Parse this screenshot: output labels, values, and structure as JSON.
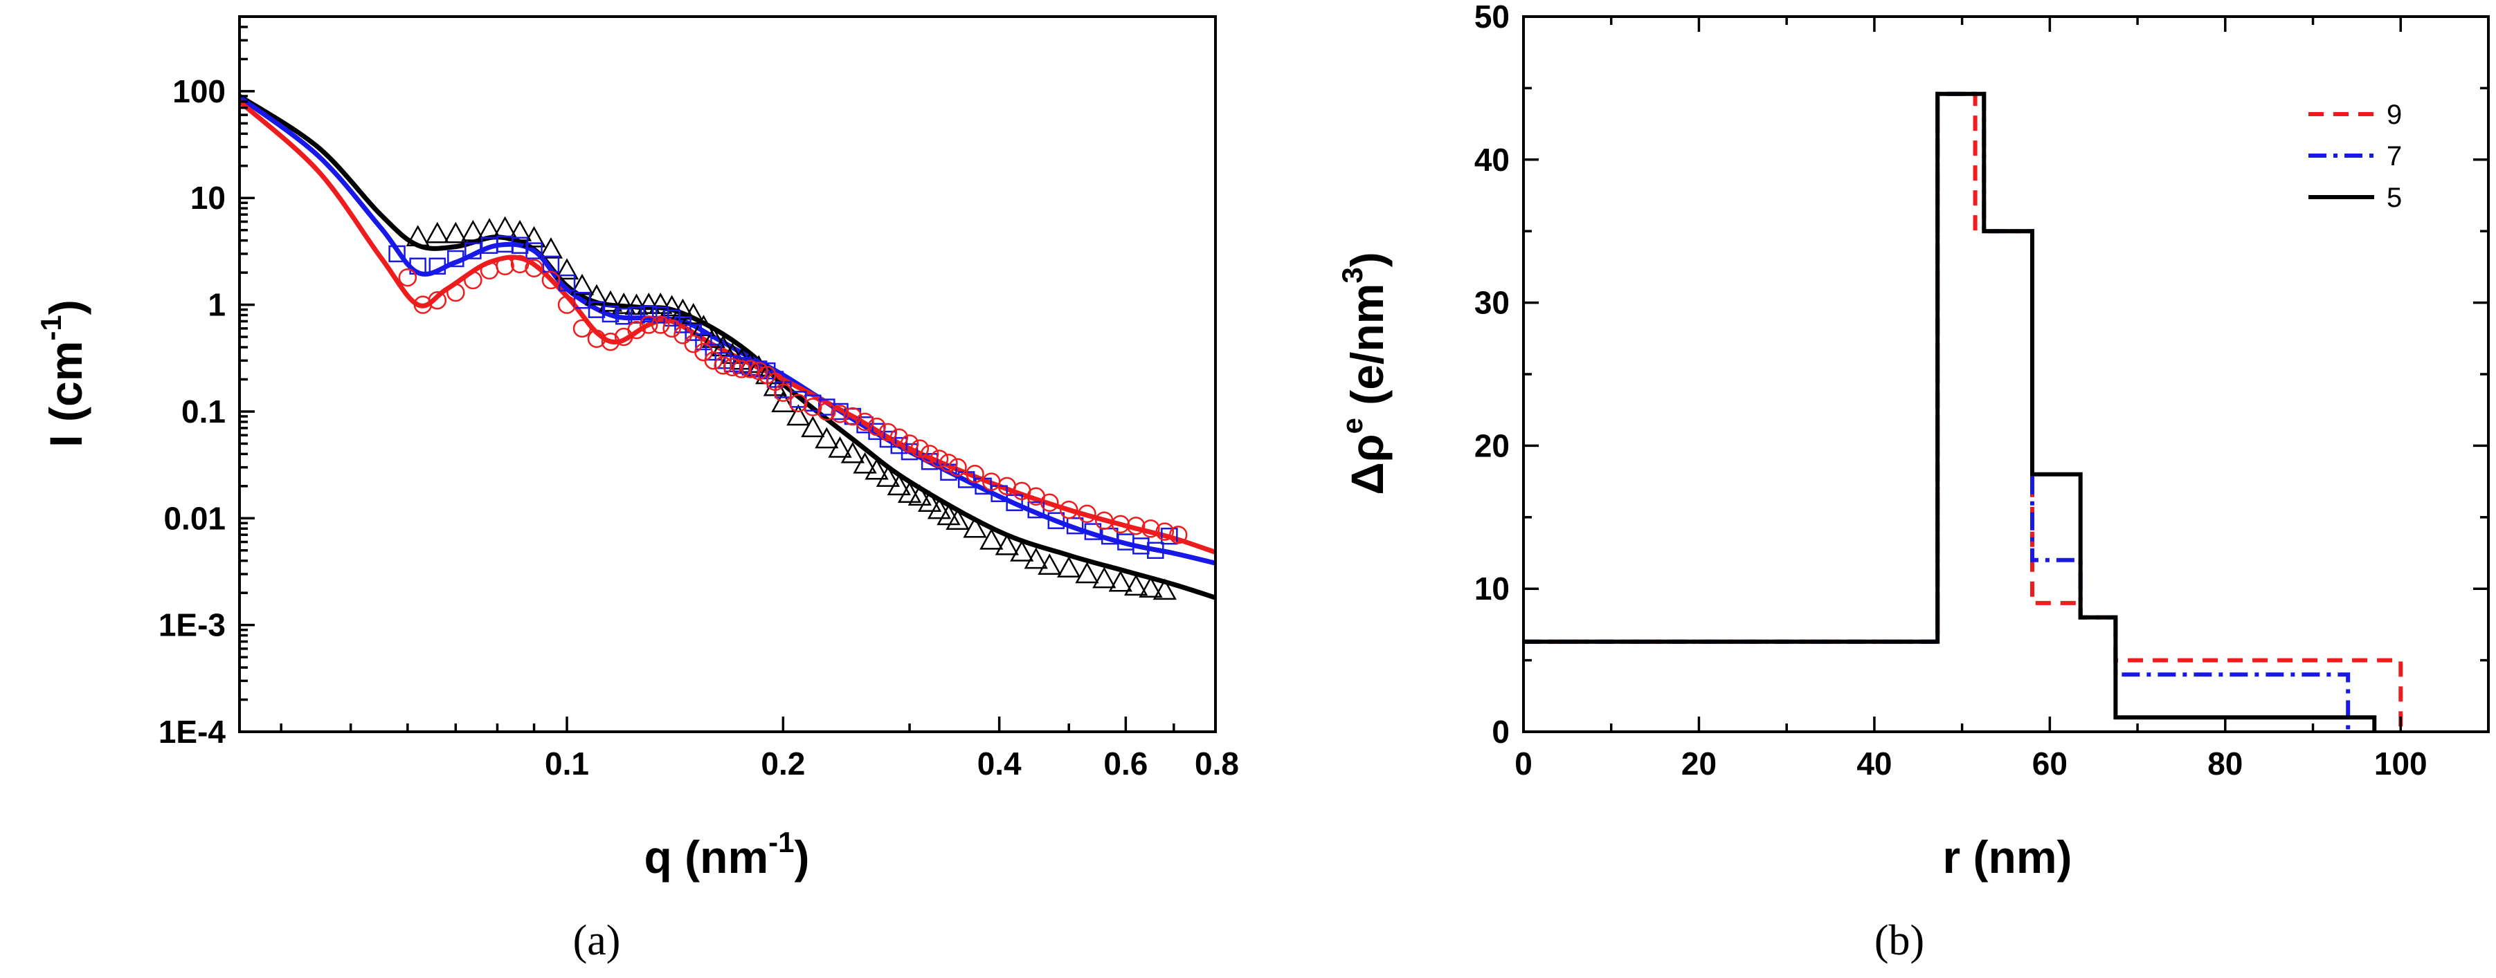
{
  "colors": {
    "red": "#ee1c1c",
    "blue": "#1818e8",
    "black": "#000000"
  },
  "chart_data": [
    {
      "panel": "a",
      "type": "scatter",
      "caption": "(a)",
      "xscale": "log",
      "yscale": "log",
      "xlim": [
        0.035,
        0.8
      ],
      "ylim": [
        0.0001,
        500
      ],
      "xticklabels": [
        "0.1",
        "0.2",
        "0.4",
        "0.6",
        "0.8"
      ],
      "xtickvalues": [
        0.1,
        0.2,
        0.4,
        0.6,
        0.8
      ],
      "yticklabels": [
        "100",
        "10",
        "1",
        "0.1",
        "0.01",
        "1E-3",
        "1E-4"
      ],
      "ytickvalues": [
        100,
        10,
        1,
        0.1,
        0.01,
        0.001,
        0.0001
      ],
      "xlabel": {
        "main": "q (nm",
        "sup": "-1",
        "close": ")"
      },
      "ylabel": {
        "main": "I (cm",
        "sup": "-1",
        "close": ")"
      },
      "series": [
        {
          "name": "black",
          "color": "#000000",
          "marker": "triangle",
          "fit_q": [
            0.035,
            0.045,
            0.055,
            0.062,
            0.07,
            0.08,
            0.09,
            0.1,
            0.11,
            0.125,
            0.14,
            0.16,
            0.18,
            0.2,
            0.25,
            0.3,
            0.4,
            0.5,
            0.6,
            0.7,
            0.8
          ],
          "fit_i": [
            90,
            30,
            7,
            3.6,
            3.5,
            4.3,
            3.3,
            1.5,
            1.05,
            0.95,
            0.9,
            0.6,
            0.35,
            0.18,
            0.055,
            0.022,
            0.0075,
            0.0045,
            0.0032,
            0.0024,
            0.0018
          ],
          "points_q": [
            0.062,
            0.066,
            0.07,
            0.074,
            0.078,
            0.082,
            0.086,
            0.09,
            0.095,
            0.1,
            0.105,
            0.11,
            0.115,
            0.12,
            0.125,
            0.13,
            0.135,
            0.14,
            0.145,
            0.15,
            0.155,
            0.16,
            0.165,
            0.17,
            0.175,
            0.18,
            0.185,
            0.19,
            0.195,
            0.2,
            0.21,
            0.22,
            0.23,
            0.24,
            0.25,
            0.26,
            0.27,
            0.28,
            0.29,
            0.3,
            0.31,
            0.32,
            0.33,
            0.34,
            0.35,
            0.37,
            0.39,
            0.41,
            0.43,
            0.45,
            0.47,
            0.5,
            0.53,
            0.56,
            0.59,
            0.62,
            0.65,
            0.68
          ],
          "points_i": [
            4.3,
            4.6,
            4.6,
            4.8,
            5.0,
            5.2,
            4.8,
            4.2,
            3.3,
            2.1,
            1.5,
            1.2,
            1.05,
            1.0,
            0.98,
            1.0,
            1.0,
            0.95,
            0.88,
            0.8,
            0.62,
            0.48,
            0.4,
            0.34,
            0.3,
            0.28,
            0.26,
            0.22,
            0.17,
            0.12,
            0.09,
            0.07,
            0.055,
            0.045,
            0.04,
            0.032,
            0.028,
            0.024,
            0.02,
            0.017,
            0.016,
            0.014,
            0.012,
            0.0105,
            0.0095,
            0.008,
            0.0062,
            0.0055,
            0.0048,
            0.0041,
            0.0036,
            0.0034,
            0.003,
            0.0027,
            0.0025,
            0.0023,
            0.0022,
            0.0021
          ]
        },
        {
          "name": "blue",
          "color": "#1818e8",
          "marker": "square",
          "fit_q": [
            0.035,
            0.045,
            0.055,
            0.062,
            0.07,
            0.08,
            0.09,
            0.1,
            0.115,
            0.13,
            0.145,
            0.16,
            0.18,
            0.2,
            0.25,
            0.3,
            0.4,
            0.5,
            0.6,
            0.7,
            0.8
          ],
          "fit_i": [
            88,
            25,
            5.3,
            2.0,
            2.5,
            3.6,
            3.2,
            1.4,
            0.8,
            0.75,
            0.7,
            0.5,
            0.32,
            0.22,
            0.085,
            0.042,
            0.016,
            0.0085,
            0.0058,
            0.0047,
            0.0038
          ],
          "points_q": [
            0.058,
            0.062,
            0.066,
            0.07,
            0.074,
            0.078,
            0.082,
            0.086,
            0.09,
            0.095,
            0.1,
            0.105,
            0.11,
            0.115,
            0.12,
            0.125,
            0.13,
            0.135,
            0.14,
            0.145,
            0.15,
            0.155,
            0.16,
            0.165,
            0.17,
            0.175,
            0.18,
            0.185,
            0.19,
            0.195,
            0.2,
            0.21,
            0.22,
            0.23,
            0.24,
            0.25,
            0.26,
            0.27,
            0.28,
            0.29,
            0.3,
            0.32,
            0.34,
            0.36,
            0.38,
            0.4,
            0.42,
            0.45,
            0.48,
            0.51,
            0.54,
            0.57,
            0.6,
            0.63,
            0.66,
            0.69
          ],
          "points_i": [
            3.0,
            2.3,
            2.3,
            2.7,
            3.2,
            3.6,
            3.7,
            3.6,
            3.2,
            2.4,
            1.6,
            1.1,
            0.9,
            0.82,
            0.78,
            0.8,
            0.82,
            0.8,
            0.75,
            0.65,
            0.55,
            0.45,
            0.36,
            0.3,
            0.28,
            0.27,
            0.26,
            0.25,
            0.24,
            0.2,
            0.16,
            0.13,
            0.12,
            0.11,
            0.1,
            0.09,
            0.075,
            0.065,
            0.055,
            0.048,
            0.042,
            0.034,
            0.027,
            0.023,
            0.02,
            0.017,
            0.014,
            0.012,
            0.0095,
            0.0085,
            0.0075,
            0.0068,
            0.006,
            0.0055,
            0.005,
            0.0068
          ]
        },
        {
          "name": "red",
          "color": "#ee1c1c",
          "marker": "circle",
          "fit_q": [
            0.035,
            0.045,
            0.055,
            0.062,
            0.068,
            0.078,
            0.088,
            0.1,
            0.11,
            0.118,
            0.13,
            0.14,
            0.16,
            0.18,
            0.2,
            0.25,
            0.3,
            0.4,
            0.5,
            0.6,
            0.7,
            0.8
          ],
          "fit_i": [
            80,
            18,
            2.8,
            1.0,
            1.4,
            2.5,
            2.6,
            1.2,
            0.55,
            0.45,
            0.65,
            0.7,
            0.42,
            0.28,
            0.2,
            0.09,
            0.045,
            0.02,
            0.012,
            0.0085,
            0.0065,
            0.0048
          ],
          "points_q": [
            0.06,
            0.063,
            0.066,
            0.07,
            0.074,
            0.078,
            0.082,
            0.086,
            0.09,
            0.095,
            0.1,
            0.105,
            0.11,
            0.115,
            0.12,
            0.125,
            0.13,
            0.135,
            0.14,
            0.145,
            0.15,
            0.155,
            0.16,
            0.165,
            0.17,
            0.175,
            0.18,
            0.185,
            0.19,
            0.195,
            0.2,
            0.21,
            0.22,
            0.23,
            0.24,
            0.25,
            0.26,
            0.27,
            0.28,
            0.29,
            0.3,
            0.31,
            0.32,
            0.33,
            0.34,
            0.35,
            0.37,
            0.39,
            0.41,
            0.43,
            0.45,
            0.47,
            0.5,
            0.53,
            0.56,
            0.59,
            0.62,
            0.65,
            0.68,
            0.71
          ],
          "points_i": [
            1.8,
            1.0,
            1.1,
            1.3,
            1.7,
            2.1,
            2.3,
            2.4,
            2.2,
            1.7,
            1.0,
            0.6,
            0.48,
            0.45,
            0.5,
            0.58,
            0.65,
            0.65,
            0.6,
            0.52,
            0.43,
            0.36,
            0.3,
            0.27,
            0.26,
            0.25,
            0.25,
            0.24,
            0.22,
            0.19,
            0.15,
            0.12,
            0.11,
            0.1,
            0.095,
            0.09,
            0.08,
            0.072,
            0.064,
            0.057,
            0.05,
            0.045,
            0.04,
            0.036,
            0.033,
            0.03,
            0.026,
            0.022,
            0.02,
            0.018,
            0.016,
            0.014,
            0.012,
            0.011,
            0.0095,
            0.0088,
            0.0085,
            0.008,
            0.0075,
            0.007
          ]
        }
      ]
    },
    {
      "panel": "b",
      "type": "line",
      "step": true,
      "caption": "(b)",
      "xlim": [
        0,
        110
      ],
      "ylim": [
        0,
        50
      ],
      "xticklabels": [
        "0",
        "20",
        "40",
        "60",
        "80",
        "100"
      ],
      "xtickvalues": [
        0,
        20,
        40,
        60,
        80,
        100
      ],
      "yticklabels": [
        "0",
        "10",
        "20",
        "30",
        "40",
        "50"
      ],
      "ytickvalues": [
        0,
        10,
        20,
        30,
        40,
        50
      ],
      "xlabel": "r (nm)",
      "ylabel": {
        "prefix": "Δρ",
        "sup1": "e",
        "mid": " (e/nm",
        "sup2": "3",
        "close": ")"
      },
      "legend_position": "top-right",
      "series": [
        {
          "name": "9",
          "color": "#ee1c1c",
          "dash": "dashed",
          "r": [
            0,
            47.2,
            47.2,
            51.5,
            51.5,
            58,
            58,
            63.5,
            63.5,
            67.5,
            67.5,
            100,
            100
          ],
          "rho": [
            6.3,
            6.3,
            44.6,
            44.6,
            35,
            35,
            9,
            9,
            8,
            8,
            5,
            5,
            0
          ]
        },
        {
          "name": "7",
          "color": "#1818e8",
          "dash": "dashdot",
          "r": [
            0,
            47.2,
            47.2,
            52.5,
            52.5,
            58,
            58,
            63.5,
            63.5,
            67.5,
            67.5,
            94,
            94
          ],
          "rho": [
            6.3,
            6.3,
            44.6,
            44.6,
            35,
            35,
            12,
            12,
            8,
            8,
            4,
            4,
            0
          ]
        },
        {
          "name": "5",
          "color": "#000000",
          "dash": "solid",
          "r": [
            0,
            47.2,
            47.2,
            52.5,
            52.5,
            58,
            58,
            63.5,
            63.5,
            67.5,
            67.5,
            97,
            97
          ],
          "rho": [
            6.3,
            6.3,
            44.6,
            44.6,
            35,
            35,
            18,
            18,
            8,
            8,
            1,
            1,
            0
          ]
        }
      ]
    }
  ]
}
